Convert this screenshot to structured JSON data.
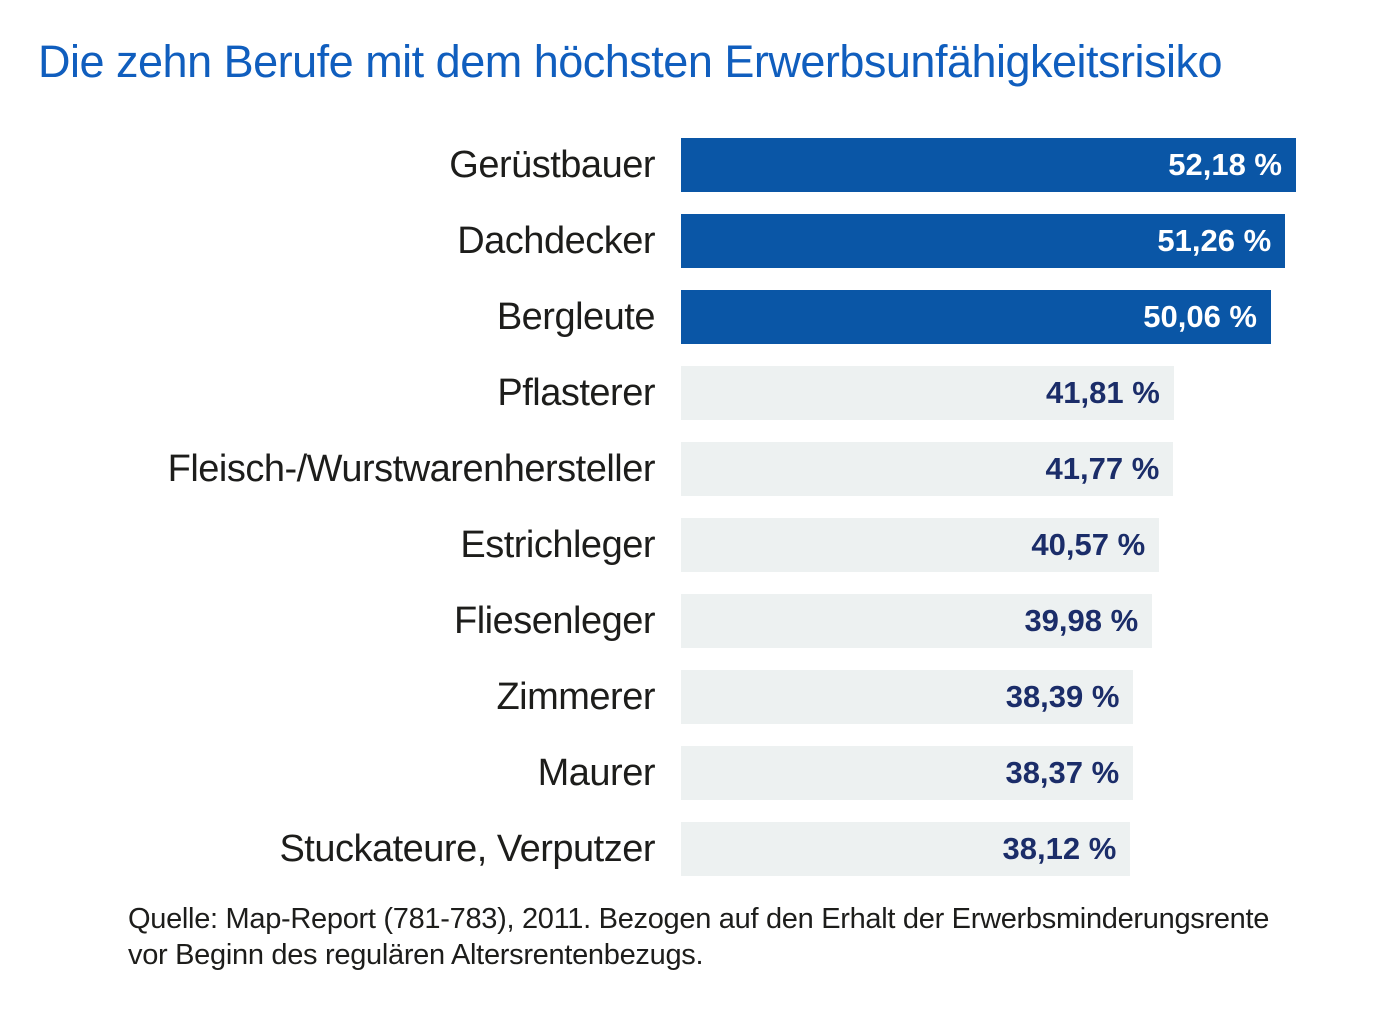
{
  "title": "Die zehn Berufe mit dem höchsten Erwerbsunfähigkeitsrisiko",
  "source_lines": [
    "Quelle: Map-Report (781-783), 2011. Bezogen auf den Erhalt der Erwerbsminderungsrente",
    "vor Beginn des regulären Altersrentenbezugs."
  ],
  "colors": {
    "title_blue": "#105ebe",
    "bar_blue": "#0a56a6",
    "bar_light": "#edf1f1",
    "value_navy": "#1b2d69",
    "text_dark": "#1d1d1b"
  },
  "chart_data": {
    "type": "bar",
    "orientation": "horizontal",
    "title": "Die zehn Berufe mit dem höchsten Erwerbsunfähigkeitsrisiko",
    "categories": [
      "Gerüstbauer",
      "Dachdecker",
      "Bergleute",
      "Pflasterer",
      "Fleisch-/Wurstwarenhersteller",
      "Estrichleger",
      "Fliesenleger",
      "Zimmerer",
      "Maurer",
      "Stuckateure, Verputzer"
    ],
    "values": [
      52.18,
      51.26,
      50.06,
      41.81,
      41.77,
      40.57,
      39.98,
      38.39,
      38.37,
      38.12
    ],
    "value_labels": [
      "52,18 %",
      "51,26 %",
      "50,06 %",
      "41,81 %",
      "41,77 %",
      "40,57 %",
      "39,98 %",
      "38,39 %",
      "38,37 %",
      "38,12 %"
    ],
    "emphasized": [
      true,
      true,
      true,
      false,
      false,
      false,
      false,
      false,
      false,
      false
    ],
    "xlabel": "",
    "ylabel": "",
    "xlim": [
      0,
      52.18
    ],
    "gridlines": false,
    "legend": "none",
    "value_label_position": "inside-end",
    "source": "Quelle: Map-Report (781-783), 2011. Bezogen auf den Erhalt der Erwerbsminderungsrente vor Beginn des regulären Altersrentenbezugs."
  }
}
